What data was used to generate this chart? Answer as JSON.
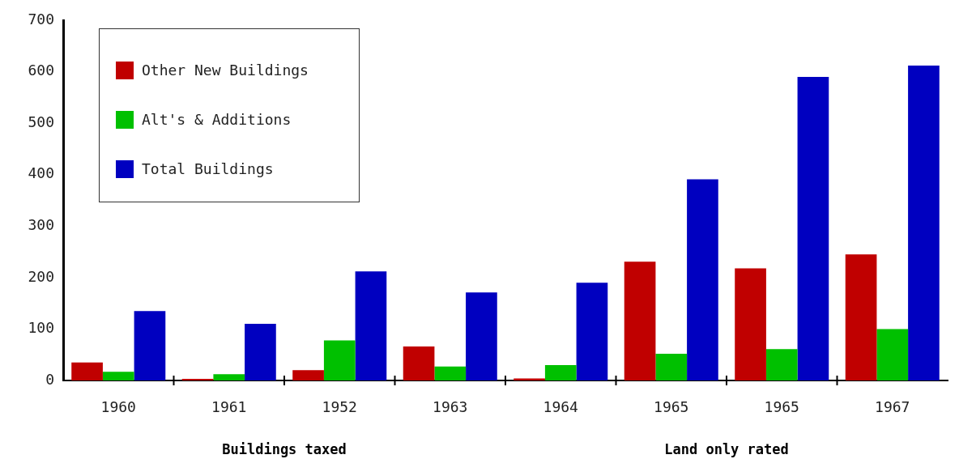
{
  "chart_data": {
    "type": "bar",
    "categories": [
      "1960",
      "1961",
      "1952",
      "1963",
      "1964",
      "1965",
      "1965",
      "1967"
    ],
    "series": [
      {
        "name": "Other New Buildings",
        "color": "#c00000",
        "values": [
          35,
          3,
          20,
          66,
          4,
          231,
          218,
          245
        ]
      },
      {
        "name": "Alt's & Additions",
        "color": "#00c000",
        "values": [
          17,
          12,
          78,
          27,
          30,
          52,
          61,
          100
        ]
      },
      {
        "name": "Total Buildings",
        "color": "#0000c0",
        "values": [
          135,
          110,
          212,
          171,
          190,
          391,
          590,
          612
        ]
      }
    ],
    "ylim": [
      0,
      700
    ],
    "yticks": [
      0,
      100,
      200,
      300,
      400,
      500,
      600,
      700
    ],
    "grid": false,
    "legend": "top left",
    "annotations": [
      "Buildings taxed",
      "Land only rated"
    ]
  }
}
